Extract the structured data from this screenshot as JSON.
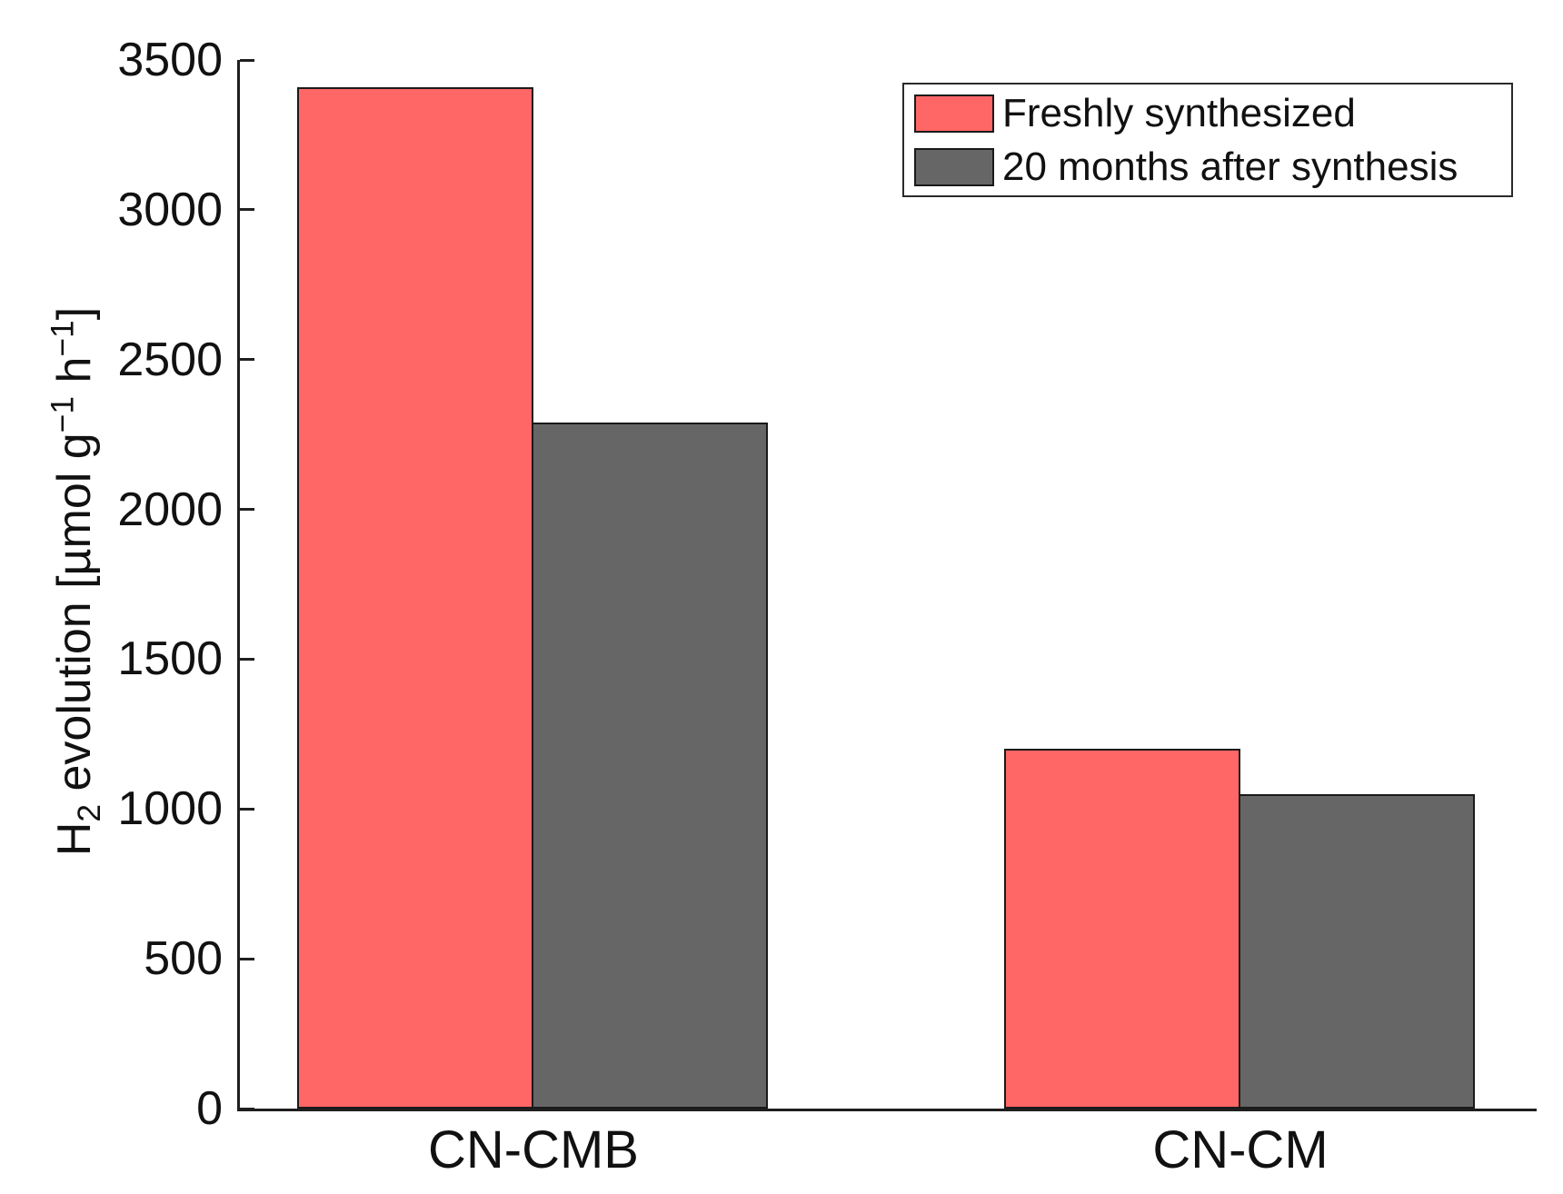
{
  "figure": {
    "background_color": "#ffffff",
    "text_color": "#111111",
    "axis_color": "#1f1f1f"
  },
  "chart_data": {
    "type": "bar",
    "title": "",
    "xlabel": "",
    "ylabel": "H2 evolution [µmol g−1 h−1]",
    "ylabel_parts": {
      "base": "H",
      "sub": "2",
      "mid1": " evolution [µmol g",
      "sup1": "−1",
      "mid2": " h",
      "sup2": "−1",
      "end": "]"
    },
    "categories": [
      "CN-CMB",
      "CN-CM"
    ],
    "series": [
      {
        "name": "Freshly synthesized",
        "color": "#FF6666",
        "values": [
          3410,
          1200
        ]
      },
      {
        "name": "20 months after synthesis",
        "color": "#666666",
        "values": [
          2290,
          1050
        ]
      }
    ],
    "bar_edge_color": "#1a1a1a",
    "ylim": [
      0,
      3500
    ],
    "yticks": [
      0,
      500,
      1000,
      1500,
      2000,
      2500,
      3000,
      3500
    ],
    "grid": false,
    "legend_position": "top-right",
    "legend_border_color": "#2a2a2a"
  }
}
